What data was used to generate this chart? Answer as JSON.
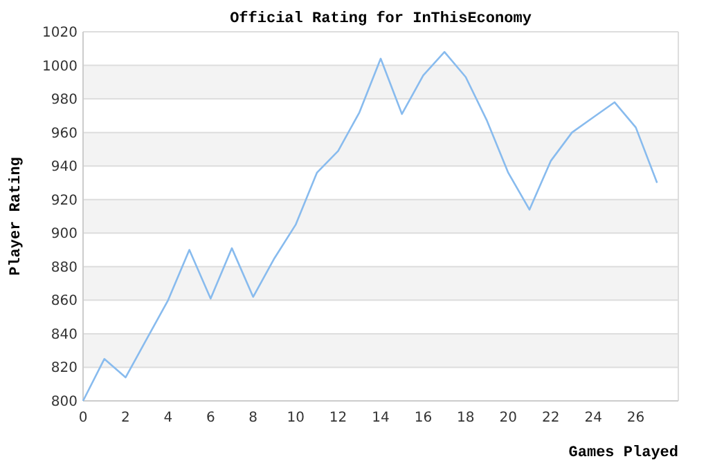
{
  "chart_data": {
    "type": "line",
    "title": "Official Rating for InThisEconomy",
    "xlabel": "Games Played",
    "ylabel": "Player Rating",
    "x": [
      0,
      1,
      2,
      3,
      4,
      5,
      6,
      7,
      8,
      9,
      10,
      11,
      12,
      13,
      14,
      15,
      16,
      17,
      18,
      19,
      20,
      21,
      22,
      23,
      24,
      25,
      26,
      27
    ],
    "series": [
      {
        "color": "#88bbee",
        "values": [
          800,
          825,
          814,
          837,
          860,
          890,
          861,
          891,
          862,
          885,
          905,
          936,
          949,
          972,
          1004,
          971,
          994,
          1008,
          993,
          967,
          936,
          914,
          943,
          960,
          969,
          978,
          963,
          930
        ]
      }
    ],
    "xlim": [
      0,
      28
    ],
    "xticks": [
      0,
      2,
      4,
      6,
      8,
      10,
      12,
      14,
      16,
      18,
      20,
      22,
      24,
      26
    ],
    "ylim": [
      800,
      1020
    ],
    "yticks": [
      800,
      820,
      840,
      860,
      880,
      900,
      920,
      940,
      960,
      980,
      1000,
      1020
    ],
    "grid": "y",
    "marker": "none",
    "line_style": "solid"
  }
}
